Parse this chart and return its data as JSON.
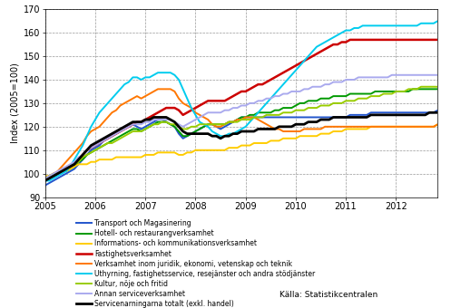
{
  "title": "",
  "ylabel": "Index (2005=100)",
  "ylim": [
    90,
    170
  ],
  "yticks": [
    90,
    100,
    110,
    120,
    130,
    140,
    150,
    160,
    170
  ],
  "xlim": [
    2005.0,
    2012.83
  ],
  "xticks": [
    2005,
    2006,
    2007,
    2008,
    2009,
    2010,
    2011,
    2012
  ],
  "background_color": "#ffffff",
  "source_text": "Källa: Statistikcentralen",
  "series": [
    {
      "name": "Transport och Magasinering",
      "color": "#2255cc",
      "lw": 1.4,
      "data": [
        95,
        96,
        97,
        98,
        99,
        100,
        101,
        102,
        104,
        106,
        108,
        110,
        111,
        112,
        114,
        115,
        116,
        117,
        118,
        119,
        120,
        121,
        120,
        119,
        120,
        121,
        122,
        123,
        123,
        122,
        121,
        120,
        117,
        115,
        116,
        117,
        118,
        119,
        120,
        121,
        121,
        120,
        119,
        120,
        121,
        122,
        123,
        124,
        124,
        124,
        124,
        124,
        124,
        124,
        124,
        124,
        124,
        124,
        124,
        124,
        124,
        124,
        124,
        124,
        124,
        124,
        124,
        124,
        124,
        124,
        124,
        124,
        124,
        125,
        125,
        125,
        125,
        125,
        126,
        126,
        126,
        126,
        126,
        126,
        126,
        126,
        126,
        126,
        126,
        126,
        126,
        126,
        126,
        126,
        127,
        127
      ]
    },
    {
      "name": "Hotell- och restaurangverksamhet",
      "color": "#009900",
      "lw": 1.4,
      "data": [
        98,
        99,
        99,
        100,
        101,
        101,
        102,
        103,
        105,
        106,
        108,
        109,
        110,
        111,
        112,
        113,
        114,
        115,
        116,
        117,
        118,
        119,
        119,
        118,
        119,
        120,
        121,
        122,
        122,
        122,
        121,
        120,
        118,
        116,
        116,
        117,
        118,
        119,
        120,
        121,
        121,
        121,
        121,
        121,
        122,
        122,
        123,
        124,
        124,
        125,
        125,
        126,
        126,
        126,
        126,
        127,
        127,
        128,
        128,
        128,
        129,
        130,
        130,
        131,
        131,
        131,
        132,
        132,
        132,
        133,
        133,
        133,
        133,
        134,
        134,
        134,
        134,
        134,
        134,
        135,
        135,
        135,
        135,
        135,
        135,
        135,
        135,
        135,
        136,
        136,
        136,
        136,
        136,
        136,
        136,
        136
      ]
    },
    {
      "name": "Informations- och kommunikationsverksamhet",
      "color": "#ffcc00",
      "lw": 1.4,
      "data": [
        99,
        99,
        100,
        100,
        101,
        101,
        102,
        103,
        104,
        104,
        104,
        105,
        105,
        106,
        106,
        106,
        106,
        107,
        107,
        107,
        107,
        107,
        107,
        107,
        108,
        108,
        108,
        109,
        109,
        109,
        109,
        109,
        108,
        108,
        109,
        109,
        110,
        110,
        110,
        110,
        110,
        110,
        110,
        110,
        111,
        111,
        111,
        112,
        112,
        112,
        113,
        113,
        113,
        113,
        114,
        114,
        114,
        115,
        115,
        115,
        115,
        116,
        116,
        116,
        116,
        116,
        117,
        117,
        117,
        118,
        118,
        118,
        119,
        119,
        119,
        119,
        119,
        119,
        120,
        120,
        120,
        120,
        120,
        120,
        120,
        120,
        120,
        120,
        120,
        120,
        120,
        120,
        120,
        120,
        121,
        121
      ]
    },
    {
      "name": "Fastighetsverksamhet",
      "color": "#cc0000",
      "lw": 1.8,
      "data": [
        98,
        98,
        99,
        100,
        101,
        102,
        103,
        104,
        106,
        108,
        110,
        111,
        112,
        113,
        114,
        115,
        116,
        117,
        118,
        119,
        120,
        121,
        122,
        122,
        123,
        124,
        125,
        126,
        127,
        128,
        128,
        128,
        127,
        125,
        126,
        127,
        128,
        129,
        130,
        131,
        131,
        131,
        131,
        131,
        132,
        133,
        134,
        135,
        135,
        136,
        137,
        138,
        138,
        139,
        140,
        141,
        142,
        143,
        144,
        145,
        146,
        147,
        148,
        149,
        150,
        151,
        152,
        153,
        154,
        155,
        155,
        156,
        156,
        157,
        157,
        157,
        157,
        157,
        157,
        157,
        157,
        157,
        157,
        157,
        157,
        157,
        157,
        157,
        157,
        157,
        157,
        157,
        157,
        157,
        157,
        157
      ]
    },
    {
      "name": "Verksamhet inom juridik, ekonomi, vetenskap och teknik",
      "color": "#ff7700",
      "lw": 1.4,
      "data": [
        98,
        99,
        100,
        101,
        103,
        105,
        107,
        109,
        111,
        113,
        116,
        118,
        119,
        120,
        122,
        124,
        126,
        127,
        129,
        130,
        131,
        132,
        133,
        132,
        133,
        134,
        135,
        136,
        136,
        136,
        136,
        135,
        132,
        130,
        129,
        128,
        126,
        125,
        124,
        123,
        121,
        120,
        120,
        121,
        122,
        122,
        123,
        123,
        124,
        124,
        124,
        123,
        122,
        121,
        120,
        119,
        119,
        118,
        118,
        118,
        118,
        118,
        119,
        119,
        119,
        119,
        119,
        120,
        120,
        120,
        120,
        120,
        120,
        120,
        120,
        120,
        120,
        120,
        120,
        120,
        120,
        120,
        120,
        120,
        120,
        120,
        120,
        120,
        120,
        120,
        120,
        120,
        120,
        120,
        121,
        121
      ]
    },
    {
      "name": "Uthyrning, fastighetsservice, resejänster och andra stödjänster",
      "color": "#00ccee",
      "lw": 1.4,
      "data": [
        97,
        97,
        98,
        99,
        100,
        101,
        103,
        106,
        109,
        112,
        116,
        120,
        123,
        126,
        128,
        130,
        132,
        134,
        136,
        138,
        139,
        141,
        141,
        140,
        141,
        141,
        142,
        143,
        143,
        143,
        143,
        142,
        140,
        136,
        132,
        128,
        125,
        122,
        121,
        120,
        118,
        117,
        116,
        116,
        117,
        117,
        118,
        119,
        120,
        122,
        124,
        126,
        128,
        130,
        132,
        134,
        136,
        138,
        140,
        142,
        144,
        146,
        148,
        150,
        152,
        154,
        155,
        156,
        157,
        158,
        159,
        160,
        161,
        161,
        162,
        162,
        163,
        163,
        163,
        163,
        163,
        163,
        163,
        163,
        163,
        163,
        163,
        163,
        163,
        163,
        164,
        164,
        164,
        164,
        165,
        165
      ]
    },
    {
      "name": "Kultur, nöje och fritid",
      "color": "#99cc00",
      "lw": 1.4,
      "data": [
        98,
        99,
        100,
        100,
        101,
        102,
        103,
        104,
        105,
        107,
        108,
        109,
        110,
        111,
        112,
        113,
        113,
        114,
        115,
        116,
        117,
        118,
        118,
        118,
        119,
        120,
        121,
        121,
        122,
        122,
        121,
        121,
        120,
        119,
        119,
        120,
        120,
        121,
        121,
        121,
        121,
        121,
        121,
        121,
        122,
        122,
        122,
        123,
        123,
        123,
        124,
        124,
        124,
        125,
        125,
        125,
        125,
        126,
        126,
        126,
        127,
        127,
        127,
        128,
        128,
        128,
        129,
        129,
        129,
        130,
        130,
        130,
        131,
        131,
        131,
        132,
        132,
        132,
        133,
        133,
        133,
        134,
        134,
        134,
        135,
        135,
        135,
        136,
        136,
        136,
        137,
        137,
        137,
        137,
        137,
        137
      ]
    },
    {
      "name": "Annan serviceverksamhet",
      "color": "#aaaaee",
      "lw": 1.4,
      "data": [
        98,
        99,
        100,
        101,
        102,
        103,
        104,
        105,
        107,
        108,
        110,
        111,
        112,
        113,
        114,
        115,
        116,
        117,
        118,
        119,
        120,
        121,
        121,
        121,
        122,
        122,
        123,
        123,
        123,
        123,
        123,
        122,
        121,
        120,
        121,
        122,
        123,
        124,
        125,
        126,
        126,
        126,
        126,
        127,
        127,
        128,
        128,
        129,
        129,
        130,
        130,
        131,
        131,
        132,
        132,
        133,
        133,
        134,
        134,
        135,
        135,
        135,
        136,
        136,
        137,
        137,
        137,
        138,
        138,
        139,
        139,
        139,
        140,
        140,
        140,
        141,
        141,
        141,
        141,
        141,
        141,
        141,
        141,
        142,
        142,
        142,
        142,
        142,
        142,
        142,
        142,
        142,
        142,
        142,
        142,
        142
      ]
    },
    {
      "name": "Servicenarningarna totalt (exkl. handel)",
      "color": "#000000",
      "lw": 2.0,
      "data": [
        97,
        98,
        99,
        100,
        101,
        102,
        103,
        104,
        106,
        108,
        110,
        112,
        113,
        114,
        115,
        116,
        117,
        118,
        119,
        120,
        121,
        122,
        122,
        122,
        123,
        123,
        124,
        124,
        124,
        124,
        123,
        122,
        120,
        118,
        117,
        117,
        117,
        117,
        117,
        117,
        116,
        116,
        115,
        116,
        116,
        117,
        117,
        118,
        118,
        118,
        118,
        119,
        119,
        119,
        119,
        119,
        120,
        120,
        120,
        120,
        121,
        121,
        121,
        122,
        122,
        122,
        123,
        123,
        123,
        124,
        124,
        124,
        124,
        124,
        124,
        124,
        124,
        124,
        125,
        125,
        125,
        125,
        125,
        125,
        125,
        125,
        125,
        125,
        125,
        125,
        125,
        125,
        126,
        126,
        126,
        126
      ]
    }
  ],
  "n_points": 96,
  "x_start": 2005.0,
  "x_end": 2012.92
}
